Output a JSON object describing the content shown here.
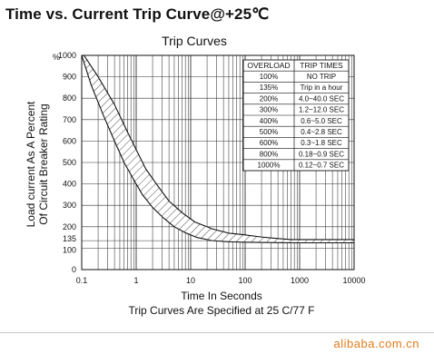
{
  "page": {
    "title": "Time vs. Current Trip Curve@+25℃",
    "footer": "alibaba.com.cn"
  },
  "chart_data": {
    "type": "area",
    "title": "Trip Curves",
    "xlabel": "Time In Seconds",
    "ylabel_lines": [
      "Load current As A Percent",
      "Of Circuit Breaker Rating"
    ],
    "note": "Trip Curves Are Specified at 25 C/77 F",
    "x_scale": "log",
    "xlim": [
      0.1,
      10000
    ],
    "ylim": [
      0,
      1000
    ],
    "x_ticks": [
      "0.1",
      "1",
      "10",
      "100",
      "1000",
      "10000"
    ],
    "y_ticks": [
      "0",
      "100",
      "135",
      "200",
      "300",
      "400",
      "500",
      "600",
      "700",
      "800",
      "900",
      "1000"
    ],
    "y_unit": "%",
    "grid": true,
    "series": [
      {
        "role": "upper",
        "x": [
          0.11,
          0.2,
          0.4,
          0.7,
          1,
          1.5,
          2.5,
          4,
          7,
          12,
          25,
          50,
          100,
          200,
          400,
          700,
          1000,
          10000
        ],
        "y": [
          1000,
          900,
          770,
          640,
          560,
          470,
          390,
          320,
          265,
          222,
          190,
          170,
          162,
          152,
          145,
          140,
          140,
          140
        ]
      },
      {
        "role": "lower",
        "x": [
          0.1,
          0.15,
          0.25,
          0.4,
          0.6,
          0.9,
          1.3,
          2,
          3.2,
          5,
          8,
          13,
          25,
          50,
          100,
          200,
          400,
          1000,
          10000
        ],
        "y": [
          1000,
          860,
          720,
          600,
          500,
          420,
          350,
          290,
          240,
          200,
          172,
          150,
          135,
          130,
          128,
          127,
          126,
          125,
          125
        ]
      }
    ],
    "table": {
      "headers": [
        "OVERLOAD",
        "TRIP TIMES"
      ],
      "rows": [
        [
          "100%",
          "NO TRIP"
        ],
        [
          "135%",
          "Trip in a hour"
        ],
        [
          "200%",
          "4.0~40.0 SEC"
        ],
        [
          "300%",
          "1.2~12.0 SEC"
        ],
        [
          "400%",
          "0.6~5.0 SEC"
        ],
        [
          "500%",
          "0.4~2.8 SEC"
        ],
        [
          "600%",
          "0.3~1.8 SEC"
        ],
        [
          "800%",
          "0.18~0.9 SEC"
        ],
        [
          "1000%",
          "0.12~0.7 SEC"
        ]
      ]
    }
  }
}
